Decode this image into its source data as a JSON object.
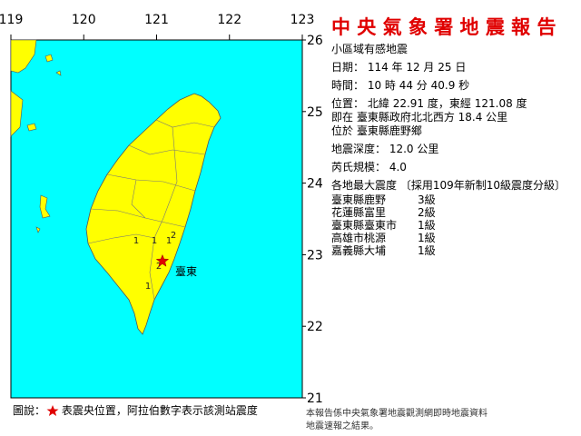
{
  "map": {
    "lonlim": [
      119,
      123
    ],
    "latlim": [
      21,
      26
    ],
    "lon_ticks": [
      119,
      120,
      121,
      122,
      123
    ],
    "lat_ticks": [
      26,
      25,
      24,
      23,
      22,
      21
    ],
    "place_label": "臺東",
    "station_intensities": [
      1,
      1,
      1,
      2,
      2,
      1
    ]
  },
  "report": {
    "title": "中 央 氣 象 署 地 震 報 告",
    "kind": "小區域有感地震",
    "date": "日期： 114 年 12 月 25 日",
    "time": "時間： 10 時 44 分 40.9 秒",
    "location": {
      "label": "位置：",
      "lat_text": "北緯",
      "lat": 22.91,
      "mid": "度，東經",
      "lon": 121.08,
      "unit": "度"
    },
    "relative": "即在 臺東縣政府北北西方 18.4 公里",
    "district": "位於 臺東縣鹿野鄉",
    "depth": "地震深度： 12.0 公里",
    "magnitude": "芮氏規模： 4.0",
    "intensity_heading": "各地最大震度 〔採用109年新制10級震度分級〕",
    "intensities": [
      [
        "臺東縣鹿野",
        "3級"
      ],
      [
        "花蓮縣富里",
        "2級"
      ],
      [
        "臺東縣臺東市",
        "1級"
      ],
      [
        "高雄市桃源",
        "1級"
      ],
      [
        "嘉義縣大埔",
        "1級"
      ]
    ]
  },
  "legend": {
    "prefix": "圖說：",
    "text": "表震央位置，阿拉伯數字表示該測站震度"
  },
  "footer": [
    "本報告係中央氣象署地震觀測網即時地震資料",
    "地震速報之結果。"
  ]
}
